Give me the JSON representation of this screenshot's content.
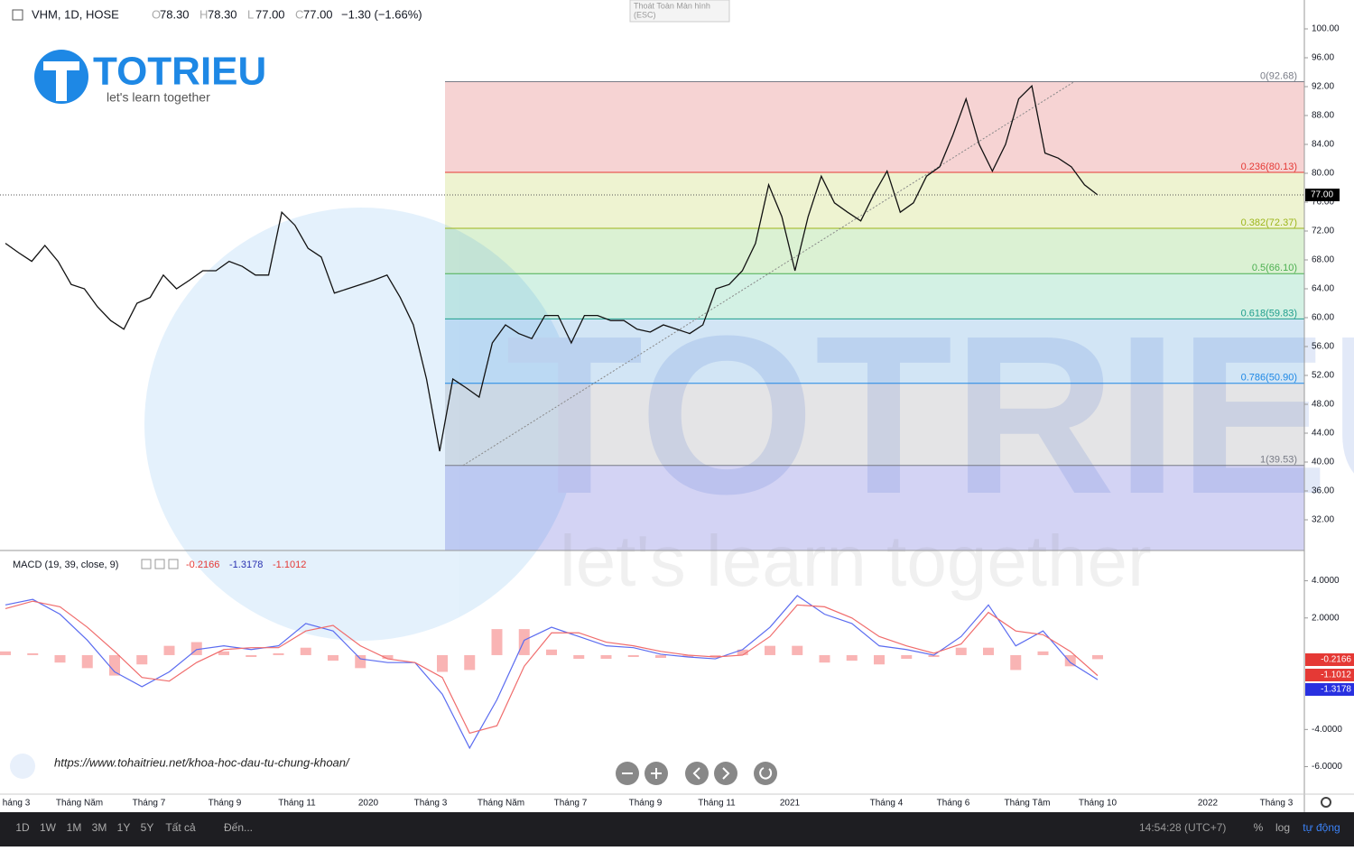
{
  "header": {
    "symbol": "VHM, 1D, HOSE",
    "ohlc": [
      {
        "key": "O",
        "value": "78.30"
      },
      {
        "key": "H",
        "value": "78.30"
      },
      {
        "key": "L",
        "value": "77.00"
      },
      {
        "key": "C",
        "value": "77.00"
      }
    ],
    "change": "−1.30 (−1.66%)"
  },
  "exit_fullscreen": [
    "Thoát Toàn Màn hình",
    "(ESC)"
  ],
  "logo": {
    "name": "TOTRIEU",
    "tagline": "let's learn together"
  },
  "url": "https://www.tohaitrieu.net/khoa-hoc-dau-tu-chung-khoan/",
  "time_axis": [
    "háng 3",
    "Tháng Năm",
    "Tháng 7",
    "Tháng 9",
    "Tháng 11",
    "2020",
    "Tháng 3",
    "Tháng Năm",
    "Tháng 7",
    "Tháng 9",
    "Tháng 11",
    "2021",
    "Tháng 4",
    "Tháng 6",
    "Tháng Tâm",
    "Tháng 10",
    "2022",
    "Tháng 3"
  ],
  "bottom_bar": {
    "ranges": [
      "1D",
      "1W",
      "1M",
      "3M",
      "1Y",
      "5Y",
      "Tất cả"
    ],
    "goto": "Đến...",
    "clock": "14:54:28 (UTC+7)",
    "options": [
      "%",
      "log",
      "tự động"
    ]
  },
  "chart_data": [
    {
      "type": "line",
      "color": "#111111",
      "values": [
        70.3,
        69,
        67.8,
        70,
        67.8,
        64.6,
        64,
        61.5,
        59.6,
        58.4,
        62,
        62.8,
        65.9,
        64,
        65.2,
        66.5,
        66.5,
        67.8,
        67.1,
        65.9,
        65.9,
        74.6,
        72.8,
        69.6,
        68.4,
        63.4,
        64,
        64.6,
        65.2,
        65.9,
        62.8,
        59,
        51.5,
        41.5,
        51.5,
        50.3,
        49,
        56.5,
        59,
        57.8,
        57.1,
        60.3,
        60.3,
        56.5,
        60.3,
        60.3,
        59.6,
        59.6,
        58.4,
        58,
        59,
        58.4,
        57.8,
        59,
        64,
        64.6,
        66.5,
        70.3,
        78.4,
        74,
        66.5,
        74,
        79.6,
        75.9,
        74.6,
        73.4,
        77.1,
        80.3,
        74.6,
        75.9,
        79.6,
        80.9,
        85.3,
        90.3,
        84,
        80.3,
        84,
        90.3,
        92.1,
        82.8,
        82.1,
        80.9,
        78.4,
        77
      ],
      "ylim": [
        27.75,
        104
      ],
      "yticks": [
        {
          "value": 100,
          "label": "100.00"
        },
        {
          "value": 96,
          "label": "96.00"
        },
        {
          "value": 92,
          "label": "92.00"
        },
        {
          "value": 88,
          "label": "88.00"
        },
        {
          "value": 84,
          "label": "84.00"
        },
        {
          "value": 80,
          "label": "80.00"
        },
        {
          "value": 76,
          "label": "76.00"
        },
        {
          "value": 72,
          "label": "72.00"
        },
        {
          "value": 68,
          "label": "68.00"
        },
        {
          "value": 64,
          "label": "64.00"
        },
        {
          "value": 60,
          "label": "60.00"
        },
        {
          "value": 56,
          "label": "56.00"
        },
        {
          "value": 52,
          "label": "52.00"
        },
        {
          "value": 48,
          "label": "48.00"
        },
        {
          "value": 44,
          "label": "44.00"
        },
        {
          "value": 40,
          "label": "40.00"
        },
        {
          "value": 36,
          "label": "36.00"
        },
        {
          "value": 32,
          "label": "32.00"
        }
      ],
      "last_price": {
        "value": 77,
        "label": "77.00"
      },
      "fib_levels": [
        {
          "label": "0(92.68)",
          "value": 92.68,
          "color": "#787b86",
          "fill": "#f6d3d3"
        },
        {
          "label": "0.236(80.13)",
          "value": 80.13,
          "color": "#e53935",
          "fill": "#eef3d1"
        },
        {
          "label": "0.382(72.37)",
          "value": 72.37,
          "color": "#9cb51a",
          "fill": "#dbf1d3"
        },
        {
          "label": "0.5(66.10)",
          "value": 66.1,
          "color": "#4caf50",
          "fill": "#d3f1e4"
        },
        {
          "label": "0.618(59.83)",
          "value": 59.83,
          "color": "#1f9e8c",
          "fill": "#d2e5f5"
        },
        {
          "label": "0.786(50.90)",
          "value": 50.9,
          "color": "#1e88e5",
          "fill": "#e4e4e6"
        },
        {
          "label": "1(39.53)",
          "value": 39.53,
          "color": "#787b86",
          "fill": "#d3d3f4"
        }
      ]
    },
    {
      "type": "macd",
      "title": "MACD (19, 39, close, 9)",
      "ylim": [
        -7.48,
        5.63
      ],
      "yticks": [
        {
          "value": 4,
          "label": "4.0000"
        },
        {
          "value": 2,
          "label": "2.0000"
        },
        {
          "value": -4,
          "label": "-4.0000"
        },
        {
          "value": -6,
          "label": "-6.0000"
        }
      ],
      "histogram": {
        "color": "#f7a1a1",
        "last_label": "-0.2166",
        "values": [
          0.2,
          0.1,
          -0.4,
          -0.7,
          -1.1,
          -0.5,
          0.5,
          0.7,
          0.2,
          -0.1,
          0.1,
          0.4,
          -0.3,
          -0.7,
          -0.2,
          0,
          -0.9,
          -0.8,
          1.4,
          1.4,
          0.3,
          -0.2,
          -0.2,
          -0.1,
          -0.15,
          -0.1,
          -0.1,
          0.3,
          0.5,
          0.5,
          -0.4,
          -0.3,
          -0.5,
          -0.2,
          -0.1,
          0.4,
          0.4,
          -0.8,
          0.2,
          -0.6,
          -0.2166
        ]
      },
      "series": [
        {
          "color": "#5b6cf0",
          "last_label": "-1.3178",
          "values": [
            2.7,
            3.0,
            2.2,
            0.8,
            -0.9,
            -1.7,
            -0.9,
            0.3,
            0.5,
            0.3,
            0.5,
            1.7,
            1.3,
            -0.2,
            -0.4,
            -0.4,
            -2.1,
            -5.0,
            -2.4,
            0.8,
            1.5,
            1.0,
            0.5,
            0.4,
            0.05,
            -0.1,
            -0.2,
            0.3,
            1.5,
            3.2,
            2.2,
            1.7,
            0.5,
            0.3,
            0,
            1.0,
            2.7,
            0.5,
            1.3,
            -0.4,
            -1.3178
          ]
        },
        {
          "color": "#f06c6c",
          "last_label": "-1.1012",
          "values": [
            2.5,
            2.9,
            2.6,
            1.5,
            0.2,
            -1.2,
            -1.4,
            -0.4,
            0.3,
            0.4,
            0.4,
            1.3,
            1.6,
            0.5,
            -0.2,
            -0.4,
            -1.2,
            -4.2,
            -3.8,
            -0.6,
            1.2,
            1.2,
            0.7,
            0.5,
            0.2,
            0,
            -0.1,
            0,
            1.0,
            2.7,
            2.6,
            2.0,
            1.0,
            0.5,
            0.1,
            0.6,
            2.3,
            1.3,
            1.1,
            0.2,
            -1.1012
          ]
        }
      ]
    }
  ]
}
